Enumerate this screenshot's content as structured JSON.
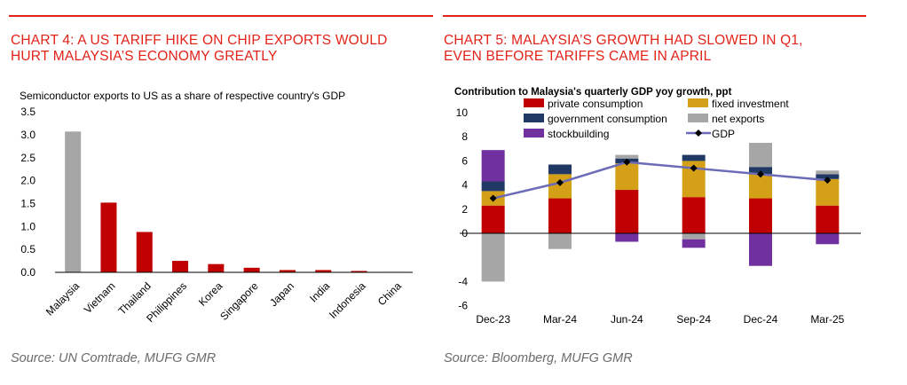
{
  "left": {
    "title_line1": "CHART 4: A US TARIFF HIKE ON CHIP EXPORTS WOULD",
    "title_line2": "HURT MALAYSIA’S ECONOMY GREATLY",
    "subtitle": "Semiconductor exports to US as a share of respective country's GDP",
    "source": "Source: UN Comtrade, MUFG GMR",
    "colors": {
      "highlight": "#a6a6a6",
      "bar": "#c00000"
    }
  },
  "right": {
    "title_line1": "CHART 5: MALAYSIA’S GROWTH HAD SLOWED IN Q1,",
    "title_line2": "EVEN BEFORE TARIFFS CAME IN APRIL",
    "subtitle": "Contribution to Malaysia's quarterly GDP yoy growth, ppt",
    "source": "Source: Bloomberg, MUFG GMR"
  },
  "chart_data": [
    {
      "type": "bar",
      "categories": [
        "Malaysia",
        "Vietnam",
        "Thailand",
        "Philippines",
        "Korea",
        "Singapore",
        "Japan",
        "India",
        "Indonesia",
        "China"
      ],
      "values": [
        3.07,
        1.52,
        0.88,
        0.25,
        0.18,
        0.1,
        0.05,
        0.05,
        0.03,
        0.01
      ],
      "ylim": [
        0,
        3.5
      ],
      "yticks": [
        "0.0",
        "0.5",
        "1.0",
        "1.5",
        "2.0",
        "2.5",
        "3.0",
        "3.5"
      ],
      "grid": false
    },
    {
      "type": "bar",
      "stacked": true,
      "categories": [
        "Dec-23",
        "Mar-24",
        "Jun-24",
        "Sep-24",
        "Dec-24",
        "Mar-25"
      ],
      "ylim": [
        -6,
        10
      ],
      "yticks": [
        "10",
        "8",
        "6",
        "4",
        "2",
        "0",
        "-4",
        "-6"
      ],
      "series": [
        {
          "name": "private consumption",
          "color": "#c00000",
          "values": [
            2.3,
            2.9,
            3.6,
            3.0,
            2.9,
            2.3
          ]
        },
        {
          "name": "fixed investment",
          "color": "#d4a017",
          "values": [
            1.2,
            2.0,
            2.2,
            3.0,
            2.0,
            2.2
          ]
        },
        {
          "name": "government consumption",
          "color": "#1f3864",
          "values": [
            0.8,
            0.8,
            0.4,
            0.5,
            0.6,
            0.4
          ]
        },
        {
          "name": "net exports",
          "color": "#a6a6a6",
          "values": [
            -4.0,
            -1.3,
            0.3,
            -0.5,
            2.0,
            0.3
          ]
        },
        {
          "name": "stockbuilding",
          "color": "#7030a0",
          "values": [
            2.6,
            0.0,
            -0.7,
            -0.7,
            -2.7,
            -0.9
          ]
        }
      ],
      "gdp_line": {
        "name": "GDP",
        "color": "#6b6bb8",
        "values": [
          2.9,
          4.2,
          5.9,
          5.4,
          4.9,
          4.4
        ]
      },
      "legend_position": "top"
    }
  ]
}
